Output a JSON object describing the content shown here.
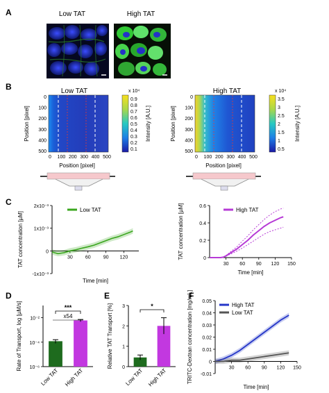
{
  "panel_letters": [
    "A",
    "B",
    "C",
    "D",
    "E",
    "F"
  ],
  "panel_a": {
    "labels": [
      "Low TAT",
      "High TAT"
    ]
  },
  "panel_b": {
    "left": {
      "title": "Low TAT",
      "ylabel": "Position [pixel]",
      "xlabel": "Position [pixel]",
      "yticks": [
        "0",
        "100",
        "200",
        "300",
        "400",
        "500"
      ],
      "xticks": [
        "0",
        "100",
        "200",
        "300",
        "400",
        "500"
      ],
      "cbar_label": "Intensity [A.U.]",
      "cbar_exp": "x 10⁴",
      "cbar_ticks": [
        "0.9",
        "0.8",
        "0.7",
        "0.6",
        "0.5",
        "0.4",
        "0.3",
        "0.2",
        "0.1"
      ]
    },
    "right": {
      "title": "High TAT",
      "ylabel": "Position [pixel]",
      "xlabel": "Position [pixel]",
      "yticks": [
        "0",
        "100",
        "200",
        "300",
        "400",
        "500"
      ],
      "xticks": [
        "0",
        "100",
        "200",
        "300",
        "400",
        "500"
      ],
      "cbar_label": "Intensity [A.U.]",
      "cbar_exp": "x 10⁴",
      "cbar_ticks": [
        "3.5",
        "3",
        "2.5",
        "2",
        "1.5",
        "1",
        "0.5"
      ]
    }
  },
  "chart_data": [
    {
      "id": "C-left",
      "type": "line",
      "xlabel": "Time [min]",
      "ylabel": "TAT concentration [µM]",
      "xlim": [
        0,
        145
      ],
      "ylim": [
        -0.001,
        0.002
      ],
      "xticks": [
        30,
        60,
        90,
        120
      ],
      "yticks": [
        "-1x10⁻³",
        "0",
        "1x10⁻³",
        "2x10⁻³"
      ],
      "legend": "top-left",
      "series": [
        {
          "name": "Low TAT",
          "color": "#3aa61e",
          "x": [
            0,
            10,
            20,
            30,
            40,
            50,
            60,
            70,
            80,
            90,
            100,
            110,
            120,
            130,
            135
          ],
          "y": [
            -5e-05,
            -0.00012,
            -8e-05,
            0.0,
            5e-05,
            0.00012,
            0.00018,
            0.00025,
            0.00035,
            0.00045,
            0.00055,
            0.00062,
            0.00072,
            0.00082,
            0.00088
          ]
        }
      ]
    },
    {
      "id": "C-right",
      "type": "line",
      "xlabel": "Time [min]",
      "ylabel": "TAT concentration [µM]",
      "xlim": [
        0,
        150
      ],
      "ylim": [
        0,
        0.6
      ],
      "xticks": [
        30,
        60,
        90,
        120,
        150
      ],
      "yticks": [
        "0",
        "0.2",
        "0.4",
        "0.6"
      ],
      "legend": "top-left",
      "series": [
        {
          "name": "High TAT",
          "color": "#b63ad6",
          "x": [
            0,
            10,
            20,
            25,
            30,
            40,
            50,
            60,
            70,
            80,
            90,
            100,
            110,
            120,
            130,
            135
          ],
          "y": [
            0,
            0,
            0,
            0.005,
            0.02,
            0.06,
            0.1,
            0.15,
            0.2,
            0.26,
            0.31,
            0.36,
            0.4,
            0.43,
            0.46,
            0.47
          ],
          "lower": [
            0,
            0,
            0,
            0.004,
            0.015,
            0.045,
            0.075,
            0.11,
            0.15,
            0.19,
            0.23,
            0.27,
            0.3,
            0.32,
            0.34,
            0.35
          ],
          "upper": [
            0,
            0,
            0,
            0.006,
            0.025,
            0.075,
            0.125,
            0.19,
            0.25,
            0.32,
            0.38,
            0.44,
            0.49,
            0.53,
            0.56,
            0.57
          ]
        }
      ]
    },
    {
      "id": "D",
      "type": "bar",
      "ylabel": "Rate of Transport, log [µM/s]",
      "yscale": "log",
      "ylim": [
        1e-06,
        0.1
      ],
      "yticks": [
        "10⁻⁶",
        "10⁻⁴",
        "10⁻²"
      ],
      "categories": [
        "Low TAT",
        "High TAT"
      ],
      "values": [
        0.00012,
        0.006
      ],
      "errors": [
        4e-05,
        0.0012
      ],
      "colors": [
        "#1e6b1e",
        "#c238e0"
      ],
      "annotations": [
        "***",
        "x54"
      ]
    },
    {
      "id": "E",
      "type": "bar",
      "ylabel": "Relative TAT Transport [%]",
      "ylim": [
        0,
        3
      ],
      "yticks": [
        "0",
        "1",
        "2",
        "3"
      ],
      "categories": [
        "Low TAT",
        "High TAT"
      ],
      "values": [
        0.45,
        2.0
      ],
      "errors": [
        0.12,
        0.4
      ],
      "colors": [
        "#1e6b1e",
        "#c238e0"
      ],
      "annotations": [
        "*"
      ]
    },
    {
      "id": "F",
      "type": "line",
      "xlabel": "Time [min]",
      "ylabel": "TRITC-Dextran concentration [mg/mL]",
      "xlim": [
        0,
        150
      ],
      "ylim": [
        -0.01,
        0.05
      ],
      "xticks": [
        30,
        60,
        90,
        120,
        150
      ],
      "yticks": [
        "-0.01",
        "0",
        "0.01",
        "0.02",
        "0.03",
        "0.04",
        "0.05"
      ],
      "legend": "top-left",
      "series": [
        {
          "name": "High TAT",
          "color": "#2536c8",
          "x": [
            0,
            15,
            30,
            45,
            60,
            75,
            90,
            105,
            120,
            135
          ],
          "y": [
            0.0,
            0.002,
            0.005,
            0.009,
            0.014,
            0.019,
            0.024,
            0.029,
            0.034,
            0.038
          ]
        },
        {
          "name": "Low TAT",
          "color": "#555555",
          "x": [
            0,
            15,
            30,
            45,
            60,
            75,
            90,
            105,
            120,
            135
          ],
          "y": [
            0.0,
            0.0,
            0.001,
            0.001,
            0.002,
            0.003,
            0.004,
            0.005,
            0.006,
            0.007
          ]
        }
      ]
    }
  ]
}
